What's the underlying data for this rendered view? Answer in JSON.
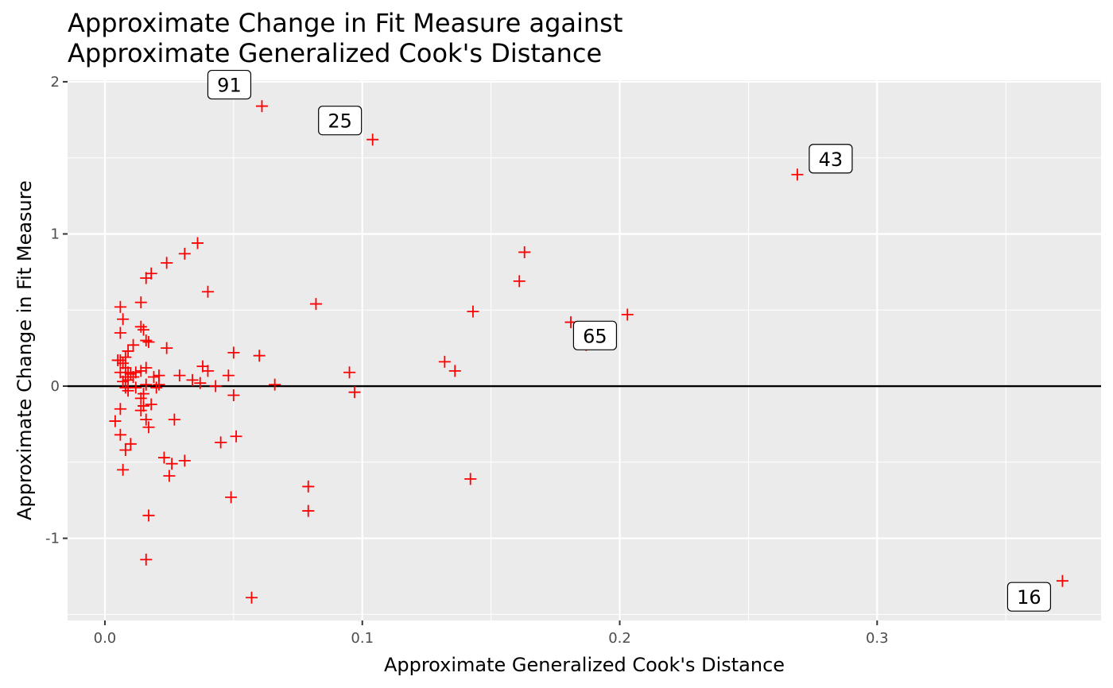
{
  "chart_data": {
    "type": "scatter",
    "title": [
      "Approximate Change in Fit Measure against",
      "Approximate Generalized Cook's Distance"
    ],
    "xlabel": "Approximate Generalized Cook's Distance",
    "ylabel": "Approximate Change in Fit Measure",
    "xlim": [
      -0.0145,
      0.387
    ],
    "ylim": [
      -1.54,
      2.01
    ],
    "x_ticks": [
      {
        "value": 0,
        "label": "0.0"
      },
      {
        "value": 0.1,
        "label": "0.1"
      },
      {
        "value": 0.2,
        "label": "0.2"
      },
      {
        "value": 0.3,
        "label": "0.3"
      }
    ],
    "y_ticks": [
      {
        "value": -1,
        "label": "-1"
      },
      {
        "value": 0,
        "label": "0"
      },
      {
        "value": 1,
        "label": "1"
      },
      {
        "value": 2,
        "label": "2"
      }
    ],
    "reference_line_y": 0,
    "grid": true,
    "colors": {
      "points": "#ff0000",
      "panel": "#ebebeb",
      "grid": "#ffffff",
      "reference_line": "#000000"
    },
    "labeled_points": [
      {
        "label": "91",
        "x": 0.061,
        "y": 1.84
      },
      {
        "label": "25",
        "x": 0.104,
        "y": 1.62
      },
      {
        "label": "43",
        "x": 0.269,
        "y": 1.39
      },
      {
        "label": "65",
        "x": 0.187,
        "y": 0.27
      },
      {
        "label": "16",
        "x": 0.372,
        "y": -1.28
      }
    ],
    "points": [
      {
        "x": 0.061,
        "y": 1.84
      },
      {
        "x": 0.104,
        "y": 1.62
      },
      {
        "x": 0.269,
        "y": 1.39
      },
      {
        "x": 0.372,
        "y": -1.28
      },
      {
        "x": 0.187,
        "y": 0.27
      },
      {
        "x": 0.163,
        "y": 0.88
      },
      {
        "x": 0.161,
        "y": 0.69
      },
      {
        "x": 0.143,
        "y": 0.49
      },
      {
        "x": 0.181,
        "y": 0.42
      },
      {
        "x": 0.203,
        "y": 0.47
      },
      {
        "x": 0.132,
        "y": 0.16
      },
      {
        "x": 0.136,
        "y": 0.1
      },
      {
        "x": 0.142,
        "y": -0.61
      },
      {
        "x": 0.095,
        "y": 0.09
      },
      {
        "x": 0.097,
        "y": -0.04
      },
      {
        "x": 0.082,
        "y": 0.54
      },
      {
        "x": 0.079,
        "y": -0.66
      },
      {
        "x": 0.079,
        "y": -0.82
      },
      {
        "x": 0.066,
        "y": 0.01
      },
      {
        "x": 0.06,
        "y": 0.2
      },
      {
        "x": 0.057,
        "y": -1.39
      },
      {
        "x": 0.05,
        "y": 0.22
      },
      {
        "x": 0.05,
        "y": -0.06
      },
      {
        "x": 0.051,
        "y": -0.33
      },
      {
        "x": 0.049,
        "y": -0.73
      },
      {
        "x": 0.048,
        "y": 0.07
      },
      {
        "x": 0.045,
        "y": -0.37
      },
      {
        "x": 0.043,
        "y": 0.0
      },
      {
        "x": 0.04,
        "y": 0.62
      },
      {
        "x": 0.04,
        "y": 0.1
      },
      {
        "x": 0.038,
        "y": 0.13
      },
      {
        "x": 0.036,
        "y": 0.94
      },
      {
        "x": 0.037,
        "y": 0.02
      },
      {
        "x": 0.034,
        "y": 0.04
      },
      {
        "x": 0.031,
        "y": 0.87
      },
      {
        "x": 0.031,
        "y": -0.49
      },
      {
        "x": 0.029,
        "y": 0.07
      },
      {
        "x": 0.027,
        "y": -0.22
      },
      {
        "x": 0.026,
        "y": -0.51
      },
      {
        "x": 0.025,
        "y": -0.59
      },
      {
        "x": 0.024,
        "y": 0.81
      },
      {
        "x": 0.024,
        "y": 0.25
      },
      {
        "x": 0.023,
        "y": -0.47
      },
      {
        "x": 0.021,
        "y": 0.07
      },
      {
        "x": 0.021,
        "y": 0.01
      },
      {
        "x": 0.02,
        "y": -0.01
      },
      {
        "x": 0.019,
        "y": 0.06
      },
      {
        "x": 0.018,
        "y": 0.74
      },
      {
        "x": 0.018,
        "y": -0.12
      },
      {
        "x": 0.017,
        "y": -0.27
      },
      {
        "x": 0.017,
        "y": -0.85
      },
      {
        "x": 0.017,
        "y": 0.29
      },
      {
        "x": 0.016,
        "y": 0.71
      },
      {
        "x": 0.016,
        "y": 0.3
      },
      {
        "x": 0.016,
        "y": 0.12
      },
      {
        "x": 0.016,
        "y": 0.01
      },
      {
        "x": 0.016,
        "y": -0.22
      },
      {
        "x": 0.016,
        "y": -1.14
      },
      {
        "x": 0.015,
        "y": 0.37
      },
      {
        "x": 0.015,
        "y": -0.05
      },
      {
        "x": 0.015,
        "y": -0.13
      },
      {
        "x": 0.014,
        "y": 0.55
      },
      {
        "x": 0.014,
        "y": 0.39
      },
      {
        "x": 0.014,
        "y": 0.1
      },
      {
        "x": 0.014,
        "y": -0.08
      },
      {
        "x": 0.014,
        "y": -0.16
      },
      {
        "x": 0.012,
        "y": 0.09
      },
      {
        "x": 0.012,
        "y": -0.01
      },
      {
        "x": 0.011,
        "y": 0.27
      },
      {
        "x": 0.011,
        "y": 0.06
      },
      {
        "x": 0.01,
        "y": 0.08
      },
      {
        "x": 0.01,
        "y": -0.38
      },
      {
        "x": 0.009,
        "y": 0.23
      },
      {
        "x": 0.009,
        "y": 0.04
      },
      {
        "x": 0.009,
        "y": 0.09
      },
      {
        "x": 0.009,
        "y": -0.03
      },
      {
        "x": 0.008,
        "y": 0.19
      },
      {
        "x": 0.008,
        "y": 0.12
      },
      {
        "x": 0.008,
        "y": 0.06
      },
      {
        "x": 0.008,
        "y": -0.01
      },
      {
        "x": 0.008,
        "y": -0.42
      },
      {
        "x": 0.007,
        "y": 0.15
      },
      {
        "x": 0.007,
        "y": 0.03
      },
      {
        "x": 0.007,
        "y": 0.44
      },
      {
        "x": 0.007,
        "y": -0.55
      },
      {
        "x": 0.006,
        "y": 0.09
      },
      {
        "x": 0.006,
        "y": 0.17
      },
      {
        "x": 0.006,
        "y": 0.52
      },
      {
        "x": 0.006,
        "y": 0.35
      },
      {
        "x": 0.006,
        "y": -0.15
      },
      {
        "x": 0.006,
        "y": -0.32
      },
      {
        "x": 0.005,
        "y": 0.17
      },
      {
        "x": 0.004,
        "y": -0.23
      }
    ]
  }
}
